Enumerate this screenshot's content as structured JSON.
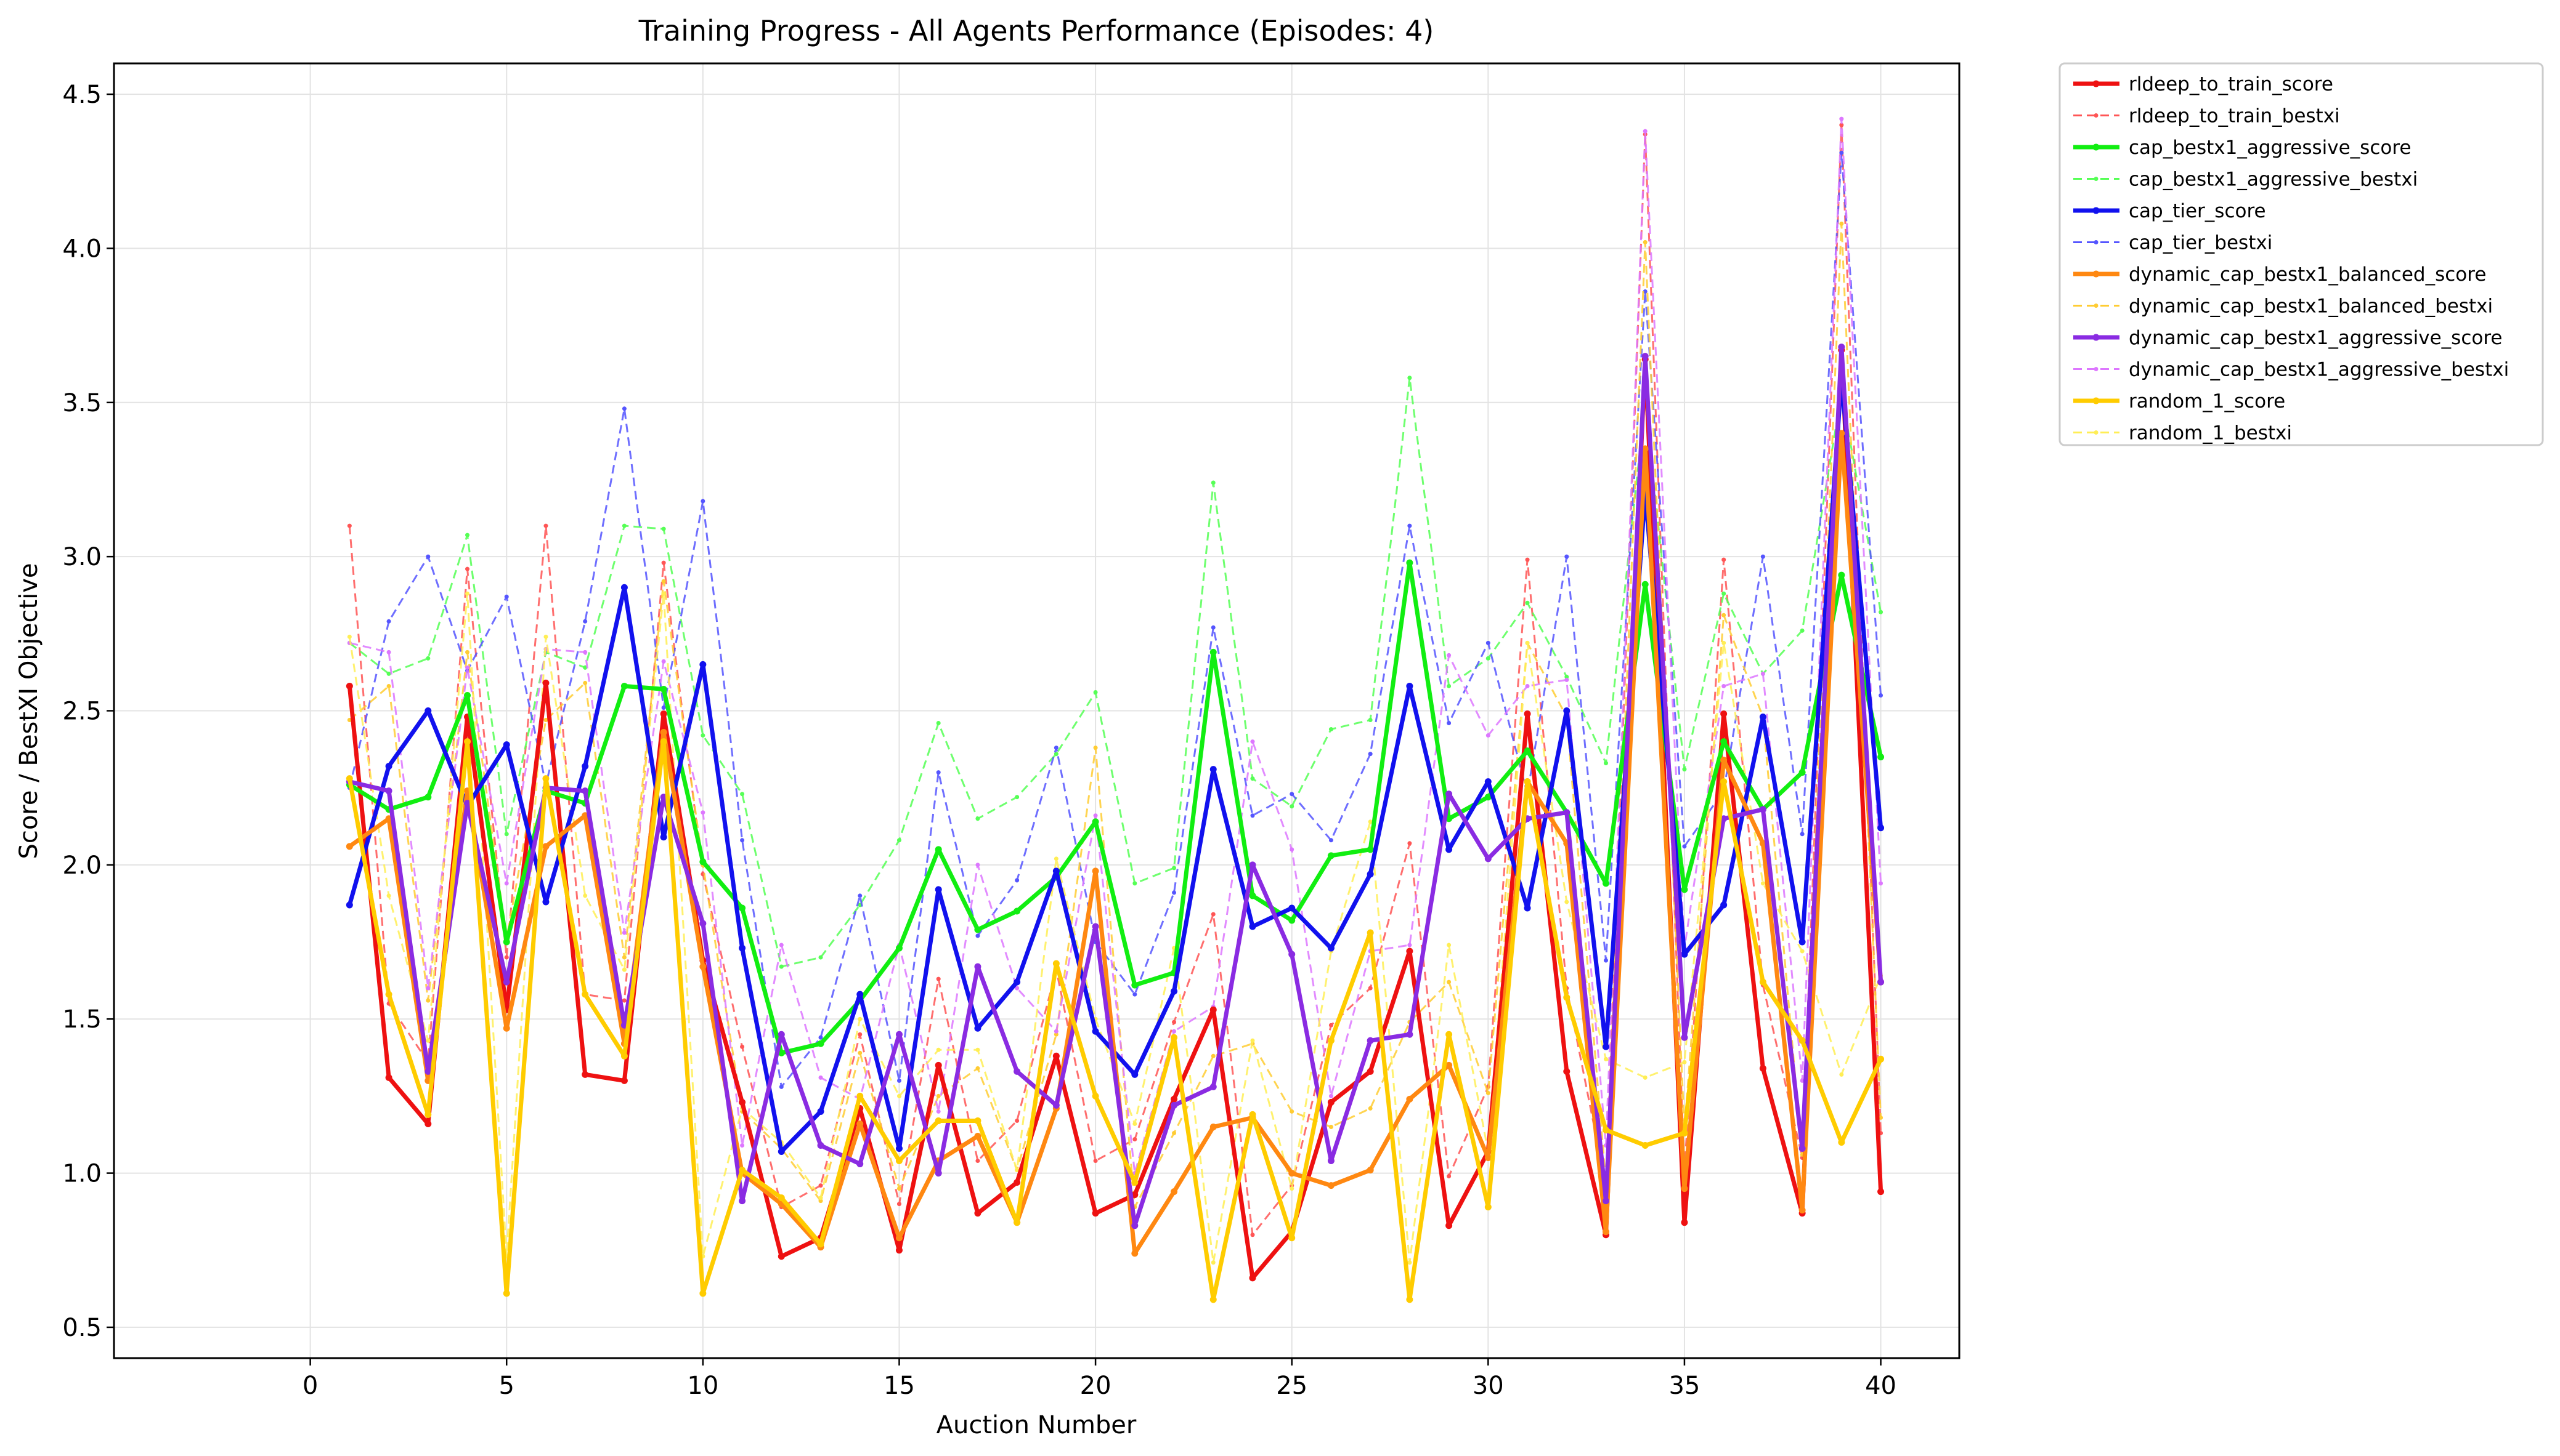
{
  "chart_data": {
    "type": "line",
    "title": "Training Progress - All Agents Performance (Episodes: 4)",
    "xlabel": "Auction Number",
    "ylabel": "Score / BestXI Objective",
    "xlim": [
      -5,
      42
    ],
    "ylim": [
      0.4,
      4.6
    ],
    "xticks": [
      0,
      5,
      10,
      15,
      20,
      25,
      30,
      35,
      40
    ],
    "yticks": [
      0.5,
      1.0,
      1.5,
      2.0,
      2.5,
      3.0,
      3.5,
      4.0,
      4.5
    ],
    "grid": true,
    "legend_position": "outside-top-right",
    "x": [
      1,
      2,
      3,
      4,
      5,
      6,
      7,
      8,
      9,
      10,
      11,
      12,
      13,
      14,
      15,
      16,
      17,
      18,
      19,
      20,
      21,
      22,
      23,
      24,
      25,
      26,
      27,
      28,
      29,
      30,
      31,
      32,
      33,
      34,
      35,
      36,
      37,
      38,
      39,
      40
    ],
    "series": [
      {
        "name": "rldeep_to_train_score",
        "color": "#ee1111",
        "style": "solid",
        "values": [
          2.58,
          1.31,
          1.16,
          2.48,
          1.53,
          2.59,
          1.32,
          1.3,
          2.49,
          1.69,
          1.23,
          0.73,
          0.79,
          1.21,
          0.75,
          1.35,
          0.87,
          0.97,
          1.38,
          0.87,
          0.93,
          1.24,
          1.53,
          0.66,
          0.81,
          1.23,
          1.33,
          1.72,
          0.83,
          1.07,
          2.49,
          1.33,
          0.8,
          3.64,
          0.84,
          2.49,
          1.34,
          0.87,
          3.67,
          0.94
        ]
      },
      {
        "name": "rldeep_to_train_bestxi",
        "color": "#ff5555",
        "style": "dashed",
        "values": [
          3.1,
          1.55,
          1.36,
          2.96,
          1.7,
          3.1,
          1.58,
          1.56,
          2.98,
          1.97,
          1.41,
          0.89,
          0.96,
          1.45,
          0.9,
          1.63,
          1.04,
          1.17,
          1.66,
          1.04,
          1.11,
          1.49,
          1.84,
          0.8,
          0.96,
          1.48,
          1.6,
          2.07,
          0.99,
          1.28,
          2.99,
          1.6,
          0.96,
          4.37,
          1.01,
          2.99,
          1.61,
          1.05,
          4.4,
          1.13
        ]
      },
      {
        "name": "cap_bestx1_aggressive_score",
        "color": "#11ee11",
        "style": "solid",
        "values": [
          2.26,
          2.18,
          2.22,
          2.55,
          1.75,
          2.24,
          2.2,
          2.58,
          2.57,
          2.01,
          1.86,
          1.39,
          1.42,
          1.56,
          1.73,
          2.05,
          1.79,
          1.85,
          1.96,
          2.14,
          1.61,
          1.65,
          2.69,
          1.9,
          1.82,
          2.03,
          2.05,
          2.98,
          2.15,
          2.22,
          2.37,
          2.17,
          1.94,
          2.91,
          1.92,
          2.4,
          2.18,
          2.3,
          2.94,
          2.35
        ]
      },
      {
        "name": "cap_bestx1_aggressive_bestxi",
        "color": "#55ff55",
        "style": "dashed",
        "values": [
          2.72,
          2.62,
          2.67,
          3.07,
          2.1,
          2.69,
          2.64,
          3.1,
          3.09,
          2.42,
          2.23,
          1.67,
          1.7,
          1.87,
          2.08,
          2.46,
          2.15,
          2.22,
          2.36,
          2.56,
          1.94,
          1.99,
          3.24,
          2.28,
          2.19,
          2.44,
          2.47,
          3.58,
          2.58,
          2.67,
          2.85,
          2.61,
          2.33,
          3.5,
          2.31,
          2.88,
          2.62,
          2.76,
          3.53,
          2.82
        ]
      },
      {
        "name": "cap_tier_score",
        "color": "#1111ee",
        "style": "solid",
        "values": [
          1.87,
          2.32,
          2.5,
          2.19,
          2.39,
          1.88,
          2.32,
          2.9,
          2.09,
          2.65,
          1.73,
          1.07,
          1.2,
          1.58,
          1.08,
          1.92,
          1.47,
          1.62,
          1.98,
          1.46,
          1.32,
          1.59,
          2.31,
          1.8,
          1.86,
          1.73,
          1.97,
          2.58,
          2.05,
          2.27,
          1.86,
          2.5,
          1.41,
          3.21,
          1.71,
          1.87,
          2.48,
          1.75,
          3.58,
          2.12
        ]
      },
      {
        "name": "cap_tier_bestxi",
        "color": "#5555ff",
        "style": "dashed",
        "values": [
          2.25,
          2.79,
          3.0,
          2.63,
          2.87,
          2.26,
          2.79,
          3.48,
          2.51,
          3.18,
          2.08,
          1.28,
          1.44,
          1.9,
          1.3,
          2.3,
          1.77,
          1.95,
          2.38,
          1.75,
          1.58,
          1.91,
          2.77,
          2.16,
          2.23,
          2.08,
          2.36,
          3.1,
          2.46,
          2.72,
          2.23,
          3.0,
          1.69,
          3.86,
          2.06,
          2.24,
          3.0,
          2.1,
          4.31,
          2.55
        ]
      },
      {
        "name": "dynamic_cap_bestx1_balanced_score",
        "color": "#ff8811",
        "style": "solid",
        "values": [
          2.06,
          2.15,
          1.3,
          2.24,
          1.47,
          2.06,
          2.16,
          1.42,
          2.43,
          1.67,
          1.0,
          0.9,
          0.76,
          1.16,
          0.79,
          1.04,
          1.12,
          0.84,
          1.21,
          1.98,
          0.74,
          0.94,
          1.15,
          1.18,
          1.0,
          0.96,
          1.01,
          1.24,
          1.35,
          1.05,
          2.27,
          2.07,
          0.81,
          3.35,
          0.95,
          2.34,
          2.07,
          0.88,
          3.4,
          1.62
        ]
      },
      {
        "name": "dynamic_cap_bestx1_balanced_bestxi",
        "color": "#ffcc33",
        "style": "dashed",
        "values": [
          2.47,
          2.58,
          1.56,
          2.69,
          1.76,
          2.47,
          2.59,
          1.7,
          2.92,
          2.0,
          1.2,
          1.08,
          0.91,
          1.39,
          0.95,
          1.25,
          1.34,
          1.01,
          1.45,
          2.38,
          0.89,
          1.13,
          1.38,
          1.42,
          1.2,
          1.15,
          1.21,
          1.49,
          1.62,
          1.26,
          2.72,
          2.48,
          0.97,
          4.02,
          1.14,
          2.81,
          2.48,
          1.06,
          4.08,
          1.18
        ]
      },
      {
        "name": "dynamic_cap_bestx1_aggressive_score",
        "color": "#8a2be2",
        "style": "solid",
        "values": [
          2.27,
          2.24,
          1.33,
          2.2,
          1.62,
          2.25,
          2.24,
          1.48,
          2.22,
          1.81,
          0.91,
          1.45,
          1.09,
          1.03,
          1.45,
          1.0,
          1.67,
          1.33,
          1.22,
          1.8,
          0.83,
          1.22,
          1.28,
          2.0,
          1.71,
          1.04,
          1.43,
          1.45,
          2.23,
          2.02,
          2.15,
          2.17,
          0.91,
          3.65,
          1.44,
          2.15,
          2.18,
          1.08,
          3.68,
          1.62
        ]
      },
      {
        "name": "dynamic_cap_bestx1_aggressive_bestxi",
        "color": "#dd77ff",
        "style": "dashed",
        "values": [
          2.72,
          2.69,
          1.6,
          2.64,
          1.94,
          2.7,
          2.69,
          1.78,
          2.66,
          2.17,
          1.09,
          1.74,
          1.31,
          1.24,
          1.74,
          1.2,
          2.0,
          1.6,
          1.46,
          2.16,
          1.0,
          1.46,
          1.54,
          2.4,
          2.05,
          1.25,
          1.72,
          1.74,
          2.68,
          2.42,
          2.58,
          2.6,
          1.09,
          4.38,
          1.73,
          2.58,
          2.62,
          1.3,
          4.42,
          1.94
        ]
      },
      {
        "name": "random_1_score",
        "color": "#ffcc00",
        "style": "solid",
        "values": [
          2.28,
          1.58,
          1.19,
          2.4,
          0.61,
          2.28,
          1.58,
          1.38,
          2.4,
          0.61,
          1.01,
          0.92,
          0.77,
          1.25,
          1.04,
          1.17,
          1.17,
          0.84,
          1.68,
          1.25,
          0.97,
          1.44,
          0.59,
          1.19,
          0.79,
          1.43,
          1.78,
          0.59,
          1.45,
          0.89,
          2.27,
          1.57,
          1.14,
          1.09,
          1.13,
          2.27,
          1.62,
          1.43,
          1.1,
          1.37
        ]
      },
      {
        "name": "random_1_bestxi",
        "color": "#ffee55",
        "style": "dashed",
        "values": [
          2.74,
          1.9,
          1.43,
          2.88,
          0.73,
          2.74,
          1.9,
          1.66,
          2.88,
          0.73,
          1.21,
          1.1,
          0.92,
          1.5,
          1.25,
          1.4,
          1.4,
          1.01,
          2.02,
          1.5,
          1.16,
          1.73,
          0.71,
          1.43,
          0.95,
          1.72,
          2.14,
          0.71,
          1.74,
          1.07,
          2.72,
          1.88,
          1.37,
          1.31,
          1.36,
          2.72,
          1.94,
          1.72,
          1.32,
          1.64
        ]
      }
    ]
  }
}
